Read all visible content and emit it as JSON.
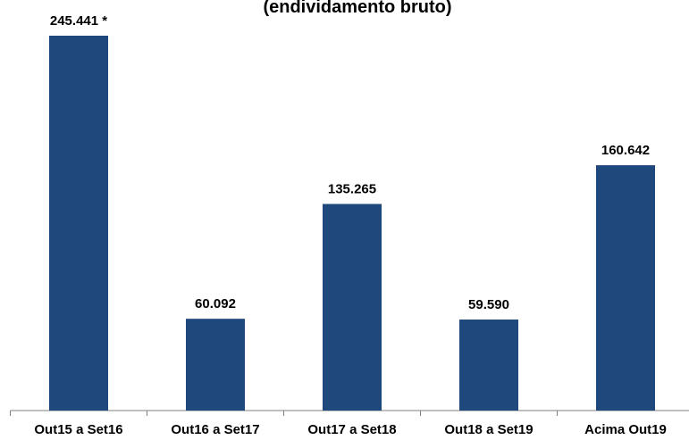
{
  "chart_data": {
    "type": "bar",
    "title": "(endividamento bruto)",
    "categories": [
      "Out15 a Set16",
      "Out16 a Set17",
      "Out17 a Set18",
      "Out18 a Set19",
      "Acima Out19"
    ],
    "values": [
      245441,
      60092,
      135265,
      59590,
      160642
    ],
    "value_labels": [
      "245.441 *",
      "60.092",
      "135.265",
      "59.590",
      "160.642"
    ],
    "color": "#1f497d",
    "ylim": [
      0,
      245441
    ]
  }
}
